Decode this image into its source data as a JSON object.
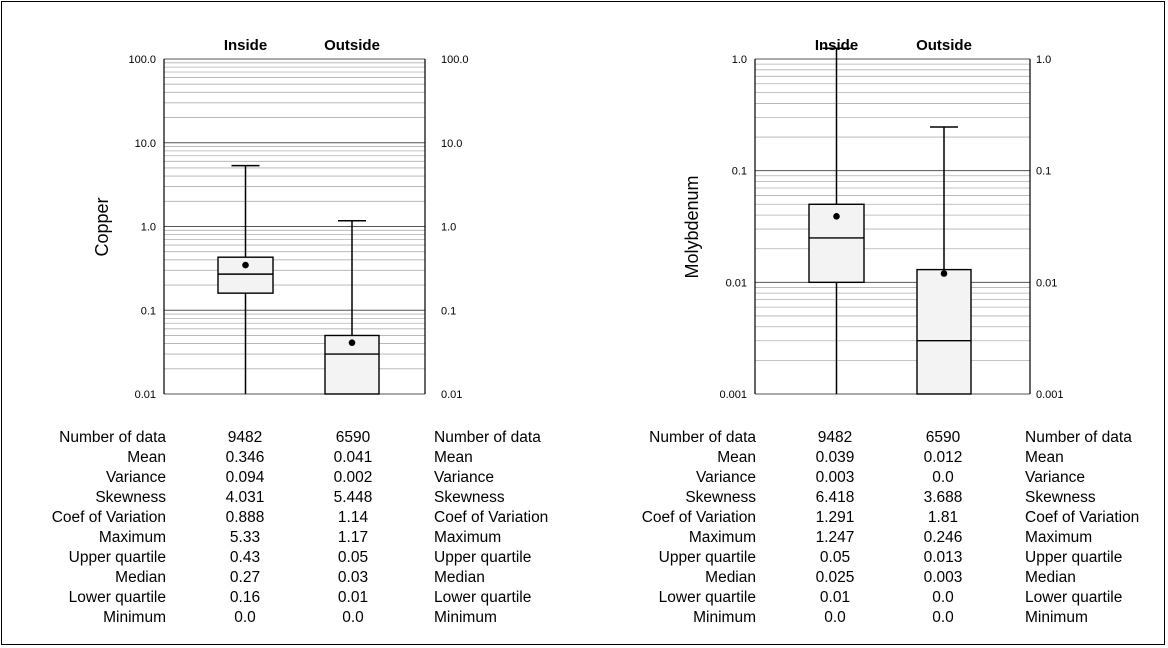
{
  "chart_data": [
    {
      "type": "box",
      "ylabel": "Copper",
      "yscale": "log",
      "ylim": [
        0.01,
        100
      ],
      "categories": [
        "Inside",
        "Outside"
      ],
      "tick_labels": [
        "100.0",
        "10.0",
        "1.0",
        "0.1",
        "0.01"
      ],
      "grid": true,
      "boxes": [
        {
          "name": "Inside",
          "minimum": 0.0,
          "lower_quartile": 0.16,
          "median": 0.27,
          "upper_quartile": 0.43,
          "maximum": 5.33,
          "mean": 0.346
        },
        {
          "name": "Outside",
          "minimum": 0.0,
          "lower_quartile": 0.01,
          "median": 0.03,
          "upper_quartile": 0.05,
          "maximum": 1.17,
          "mean": 0.041
        }
      ]
    },
    {
      "type": "box",
      "ylabel": "Molybdenum",
      "yscale": "log",
      "ylim": [
        0.001,
        1
      ],
      "categories": [
        "Inside",
        "Outside"
      ],
      "tick_labels": [
        "1.0",
        "0.1",
        "0.01",
        "0.001"
      ],
      "grid": true,
      "boxes": [
        {
          "name": "Inside",
          "minimum": 0.0,
          "lower_quartile": 0.01,
          "median": 0.025,
          "upper_quartile": 0.05,
          "maximum": 1.247,
          "mean": 0.039
        },
        {
          "name": "Outside",
          "minimum": 0.0,
          "lower_quartile": 0.0,
          "median": 0.003,
          "upper_quartile": 0.013,
          "maximum": 0.246,
          "mean": 0.012
        }
      ]
    }
  ],
  "stats": [
    {
      "labels": [
        "Number of data",
        "Mean",
        "Variance",
        "Skewness",
        "Coef of Variation",
        "Maximum",
        "Upper quartile",
        "Median",
        "Lower quartile",
        "Minimum"
      ],
      "inside": [
        "9482",
        "0.346",
        "0.094",
        "4.031",
        "0.888",
        "5.33",
        "0.43",
        "0.27",
        "0.16",
        "0.0"
      ],
      "outside": [
        "6590",
        "0.041",
        "0.002",
        "5.448",
        "1.14",
        "1.17",
        "0.05",
        "0.03",
        "0.01",
        "0.0"
      ]
    },
    {
      "labels": [
        "Number of data",
        "Mean",
        "Variance",
        "Skewness",
        "Coef of Variation",
        "Maximum",
        "Upper quartile",
        "Median",
        "Lower quartile",
        "Minimum"
      ],
      "inside": [
        "9482",
        "0.039",
        "0.003",
        "6.418",
        "1.291",
        "1.247",
        "0.05",
        "0.025",
        "0.01",
        "0.0"
      ],
      "outside": [
        "6590",
        "0.012",
        "0.0",
        "3.688",
        "1.81",
        "0.246",
        "0.013",
        "0.003",
        "0.0",
        "0.0"
      ]
    }
  ]
}
